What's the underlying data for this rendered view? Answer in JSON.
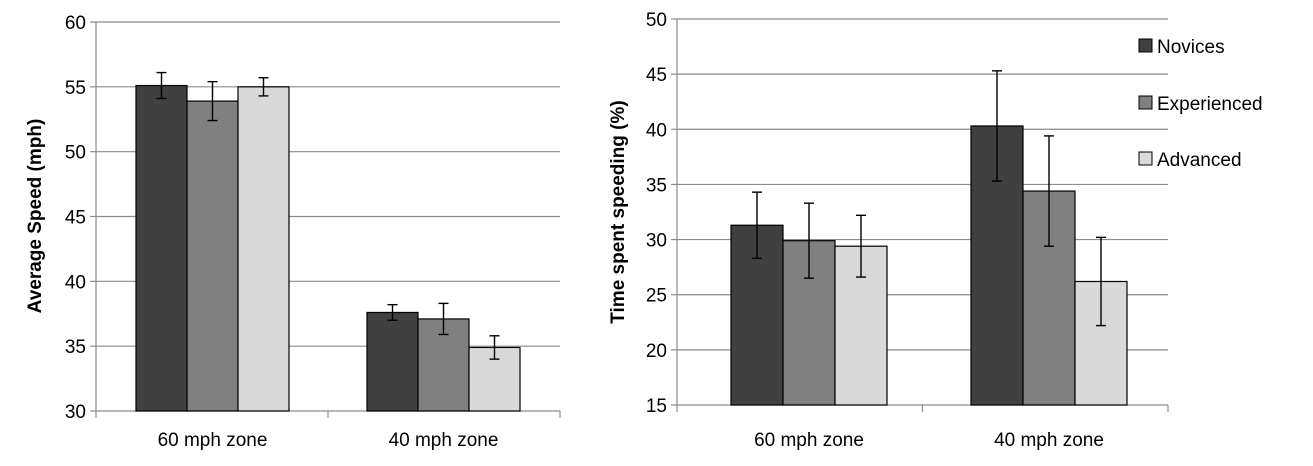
{
  "legend": {
    "series": [
      "Novices",
      "Experienced",
      "Advanced"
    ]
  },
  "colors": {
    "Novices": "#404040",
    "Experienced": "#808080",
    "Advanced": "#d9d9d9",
    "grid": "#8c8c8c",
    "axis": "#8c8c8c",
    "bar_stroke": "#000000"
  },
  "chart_data": [
    {
      "type": "bar",
      "categories": [
        "60 mph zone",
        "40 mph zone"
      ],
      "series": [
        {
          "name": "Novices",
          "values": [
            55.1,
            37.6
          ],
          "errors": [
            1.0,
            0.6
          ]
        },
        {
          "name": "Experienced",
          "values": [
            53.9,
            37.1
          ],
          "errors": [
            1.5,
            1.2
          ]
        },
        {
          "name": "Advanced",
          "values": [
            55.0,
            34.9
          ],
          "errors": [
            0.7,
            0.9
          ]
        }
      ],
      "title": "",
      "xlabel": "",
      "ylabel": "Average Speed (mph)",
      "ylim": [
        30,
        60
      ],
      "yticks": [
        30,
        35,
        40,
        45,
        50,
        55,
        60
      ],
      "grid": true,
      "legend": "none"
    },
    {
      "type": "bar",
      "categories": [
        "60 mph zone",
        "40 mph zone"
      ],
      "series": [
        {
          "name": "Novices",
          "values": [
            31.3,
            40.3
          ],
          "errors": [
            3.0,
            5.0
          ]
        },
        {
          "name": "Experienced",
          "values": [
            29.9,
            34.4
          ],
          "errors": [
            3.4,
            5.0
          ]
        },
        {
          "name": "Advanced",
          "values": [
            29.4,
            26.2
          ],
          "errors": [
            2.8,
            4.0
          ]
        }
      ],
      "title": "",
      "xlabel": "",
      "ylabel": "Time spent speeding (%)",
      "ylim": [
        15,
        50
      ],
      "yticks": [
        15,
        20,
        25,
        30,
        35,
        40,
        45,
        50
      ],
      "grid": true,
      "legend": "right"
    }
  ]
}
